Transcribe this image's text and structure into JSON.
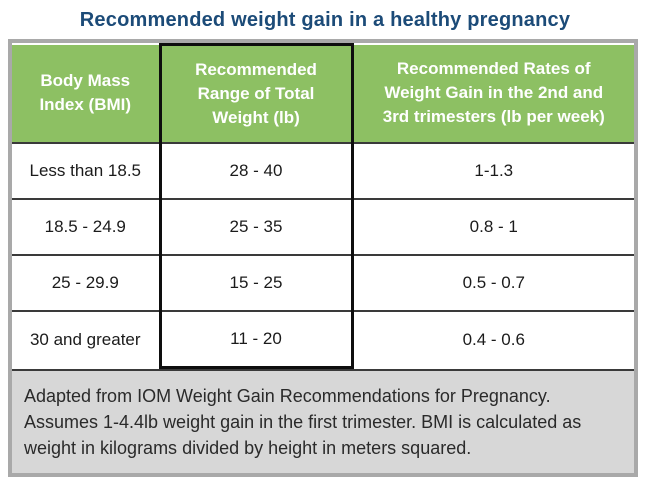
{
  "title": "Recommended weight gain in a healthy pregnancy",
  "colors": {
    "title_navy": "#1C4B78",
    "header_green": "#8DC063",
    "header_text": "#FFFFFF",
    "outer_border_gray": "#A9A9A9",
    "highlight_box_black": "#0E0E0E",
    "row_divider_gray": "#3A3A3A",
    "footnote_bg_gray": "#D7D7D7",
    "body_text": "#1B1B1B"
  },
  "table": {
    "columns": [
      {
        "label": "Body Mass Index (BMI)",
        "lines": [
          "Body Mass",
          "Index (BMI)"
        ],
        "highlighted": false
      },
      {
        "label": "Recommended Range of Total Weight (lb)",
        "lines": [
          "Recommended",
          "Range of Total",
          "Weight (lb)"
        ],
        "highlighted": true
      },
      {
        "label": "Recommended Rates of Weight Gain in the 2nd and 3rd trimesters (lb per week)",
        "lines": [
          "Recommended Rates of",
          "Weight Gain in the 2nd and",
          "3rd trimesters (lb per week)"
        ],
        "highlighted": false
      }
    ],
    "rows": [
      [
        "Less than 18.5",
        "28 - 40",
        "1-1.3"
      ],
      [
        "18.5 - 24.9",
        "25 - 35",
        "0.8 - 1"
      ],
      [
        "25 - 29.9",
        "15 - 25",
        "0.5 - 0.7"
      ],
      [
        "30 and greater",
        "11 - 20",
        "0.4 - 0.6"
      ]
    ]
  },
  "footnote": {
    "text": "Adapted from IOM Weight Gain Recommendations for Pregnancy. Assumes 1-4.4lb weight gain in the first trimester. BMI is calculated as weight in kilograms divided by height in meters squared.",
    "lines": [
      "Adapted from IOM Weight Gain Recommendations for Pregnancy.",
      "Assumes 1-4.4lb weight gain in the first trimester. BMI is calculated as",
      "weight in kilograms divided by height in meters squared."
    ]
  },
  "chart_data": {
    "type": "table",
    "title": "Recommended weight gain in a healthy pregnancy",
    "columns": [
      "Body Mass Index (BMI)",
      "Recommended Range of Total Weight (lb)",
      "Recommended Rates of Weight Gain in the 2nd and 3rd trimesters (lb per week)"
    ],
    "rows": [
      [
        "Less than 18.5",
        "28 - 40",
        "1-1.3"
      ],
      [
        "18.5 - 24.9",
        "25 - 35",
        "0.8 - 1"
      ],
      [
        "25 - 29.9",
        "15 - 25",
        "0.5 - 0.7"
      ],
      [
        "30 and greater",
        "11 - 20",
        "0.4 - 0.6"
      ]
    ],
    "highlighted_column": "Recommended Range of Total Weight (lb)",
    "footnote": "Adapted from IOM Weight Gain Recommendations for Pregnancy. Assumes 1-4.4lb weight gain in the first trimester. BMI is calculated as weight in kilograms divided by height in meters squared."
  }
}
